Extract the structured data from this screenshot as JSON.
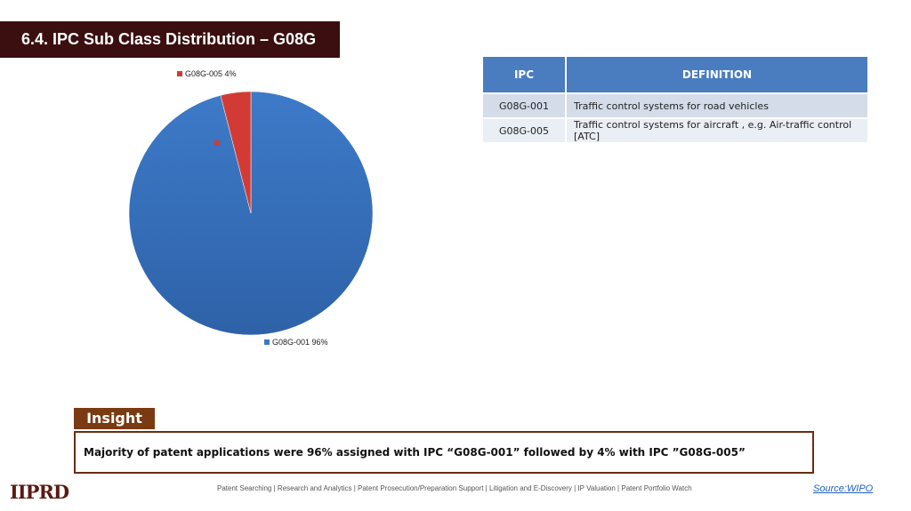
{
  "title": "6.4. IPC Sub Class Distribution – G08G",
  "chart_data": {
    "type": "pie",
    "slices": [
      {
        "label": "G08G-001 96%",
        "name": "G08G-001",
        "value": 96,
        "color": "#3d78c3"
      },
      {
        "label": "G08G-005 4%",
        "name": "G08G-005",
        "value": 4,
        "color": "#d23b35"
      }
    ]
  },
  "table": {
    "headers": [
      "IPC",
      "DEFINITION"
    ],
    "rows": [
      [
        "G08G-001",
        "Traffic control systems for road vehicles"
      ],
      [
        "G08G-005",
        "Traffic control systems for aircraft , e.g. Air-traffic control [ATC]"
      ]
    ]
  },
  "insight": {
    "label": "Insight",
    "text": "Majority of patent applications were 96% assigned with IPC “G08G-001” followed by 4% with IPC ”G08G-005”"
  },
  "footer": {
    "logo": "IIPRD",
    "services": "Patent Searching | Research and Analytics | Patent Prosecution/Preparation Support | Litigation and E-Discovery | IP Valuation | Patent Portfolio Watch",
    "source": "Source:WIPO"
  }
}
